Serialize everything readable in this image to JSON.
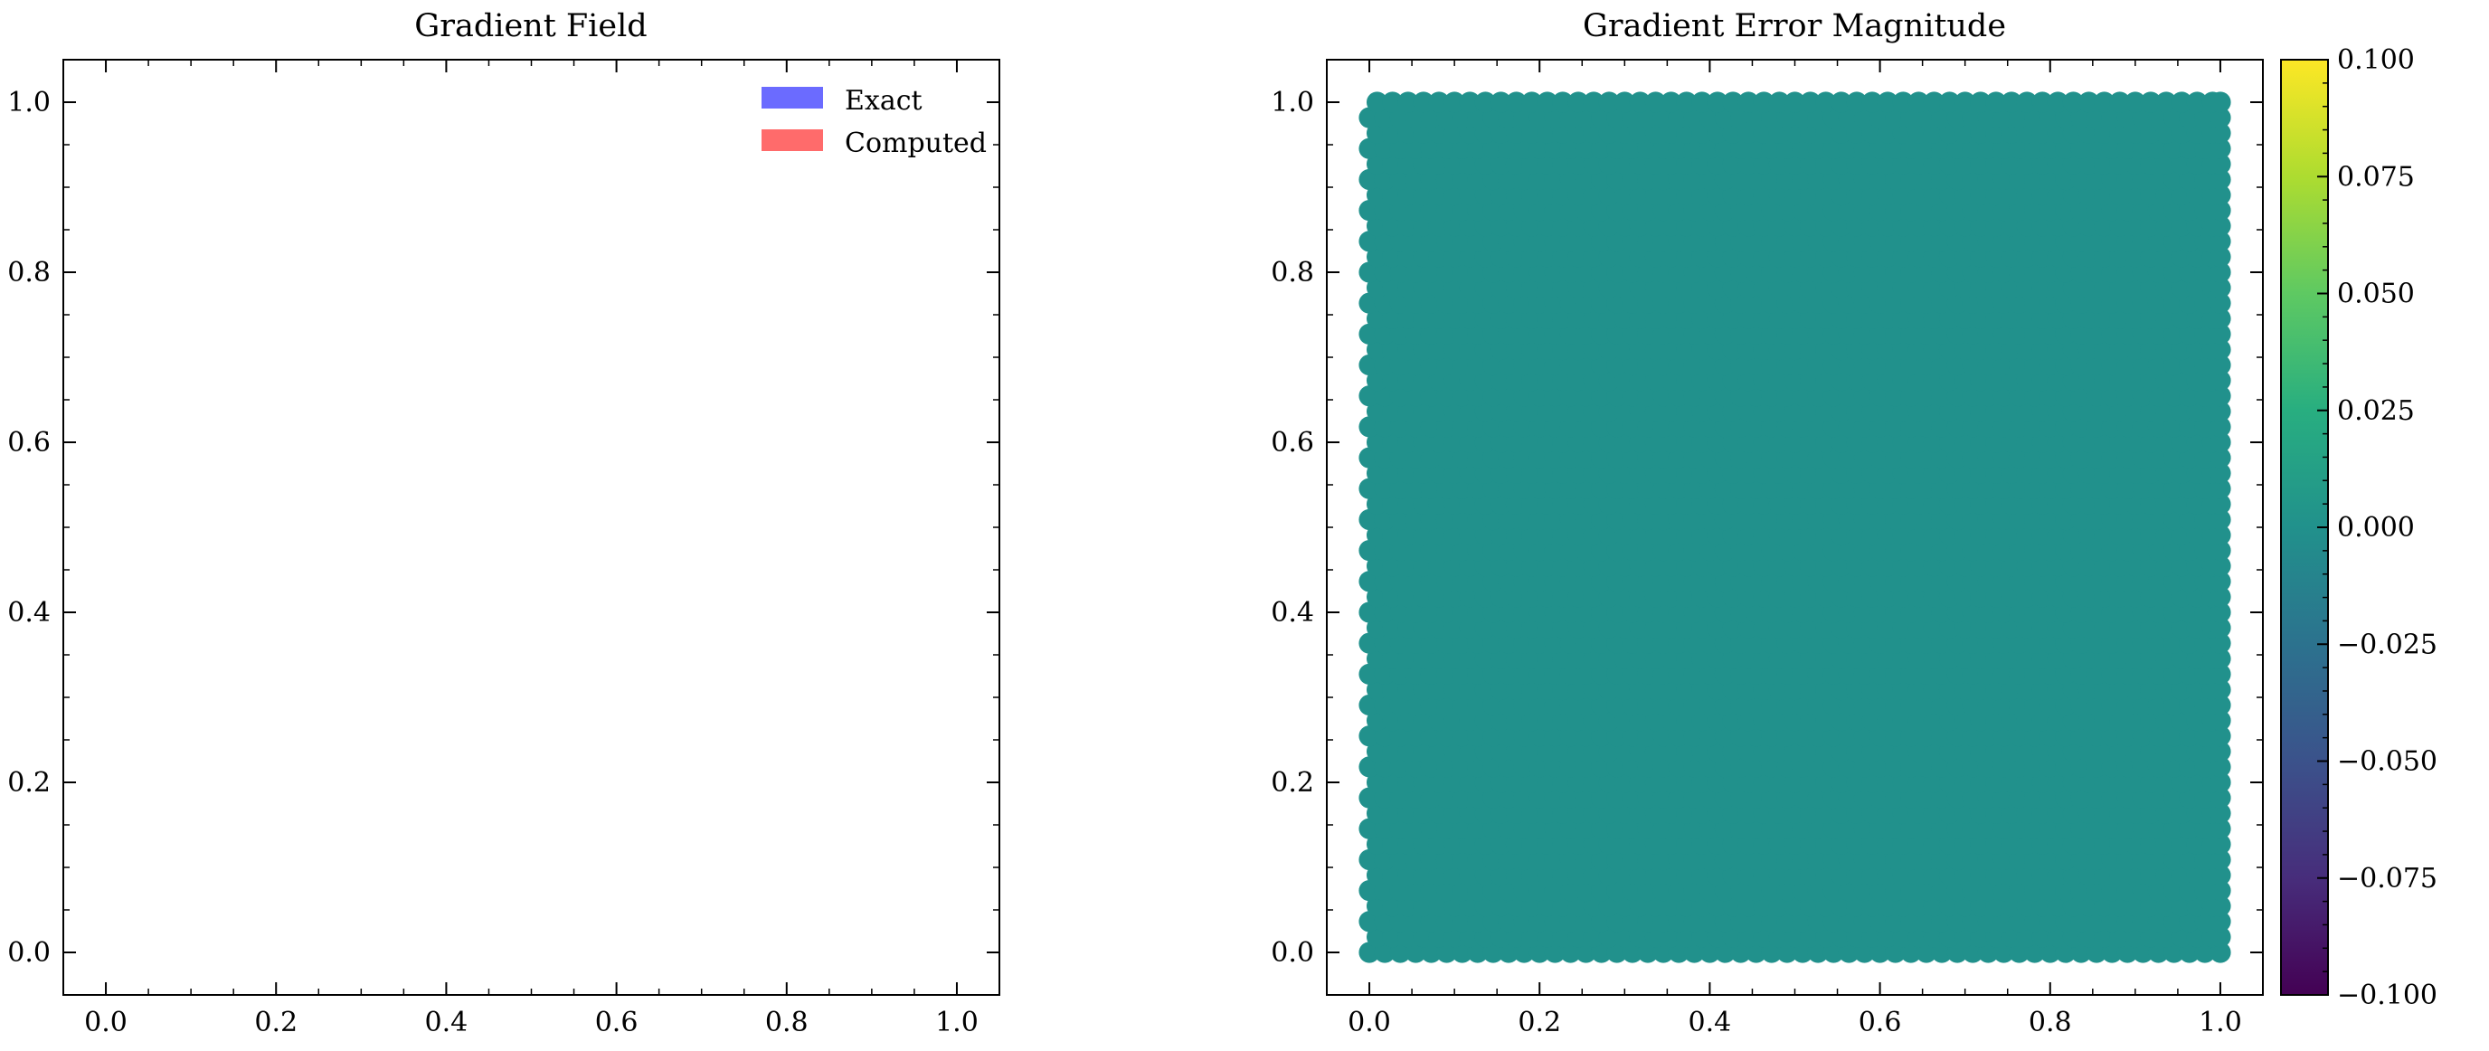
{
  "chart_data": [
    {
      "type": "quiver",
      "title": "Gradient Field",
      "xlabel": "",
      "ylabel": "",
      "xlim": [
        -0.05,
        1.05
      ],
      "ylim": [
        -0.05,
        1.05
      ],
      "xticks": [
        0.0,
        0.2,
        0.4,
        0.6,
        0.8,
        1.0
      ],
      "yticks": [
        0.0,
        0.2,
        0.4,
        0.6,
        0.8,
        1.0
      ],
      "xtick_labels": [
        "0.0",
        "0.2",
        "0.4",
        "0.6",
        "0.8",
        "1.0"
      ],
      "ytick_labels": [
        "0.0",
        "0.2",
        "0.4",
        "0.6",
        "0.8",
        "1.0"
      ],
      "series": [
        {
          "name": "Exact",
          "color": "#6b6bff",
          "values": []
        },
        {
          "name": "Computed",
          "color": "#ff6b6b",
          "values": []
        }
      ],
      "legend": "top-right",
      "grid": false
    },
    {
      "type": "scatter",
      "title": "Gradient Error Magnitude",
      "xlabel": "",
      "ylabel": "",
      "xlim": [
        -0.05,
        1.05
      ],
      "ylim": [
        -0.05,
        1.05
      ],
      "xticks": [
        0.0,
        0.2,
        0.4,
        0.6,
        0.8,
        1.0
      ],
      "yticks": [
        0.0,
        0.2,
        0.4,
        0.6,
        0.8,
        1.0
      ],
      "xtick_labels": [
        "0.0",
        "0.2",
        "0.4",
        "0.6",
        "0.8",
        "1.0"
      ],
      "ytick_labels": [
        "0.0",
        "0.2",
        "0.4",
        "0.6",
        "0.8",
        "1.0"
      ],
      "point_grid": {
        "x_range": [
          0.0,
          1.0
        ],
        "y_range": [
          0.0,
          1.0
        ],
        "n": 56
      },
      "point_value": 0.0,
      "point_color": "#21918c",
      "grid": false,
      "colorbar": {
        "range": [
          -0.1,
          0.1
        ],
        "ticks": [
          -0.1,
          -0.075,
          -0.05,
          -0.025,
          0.0,
          0.025,
          0.05,
          0.075,
          0.1
        ],
        "tick_labels": [
          "−0.100",
          "−0.075",
          "−0.050",
          "−0.025",
          "0.000",
          "0.025",
          "0.050",
          "0.075",
          "0.100"
        ],
        "colormap": "viridis",
        "stops": [
          "#440154",
          "#472d7b",
          "#3b528b",
          "#2c728e",
          "#21918c",
          "#28ae80",
          "#5ec962",
          "#addc30",
          "#fde725"
        ]
      }
    }
  ]
}
